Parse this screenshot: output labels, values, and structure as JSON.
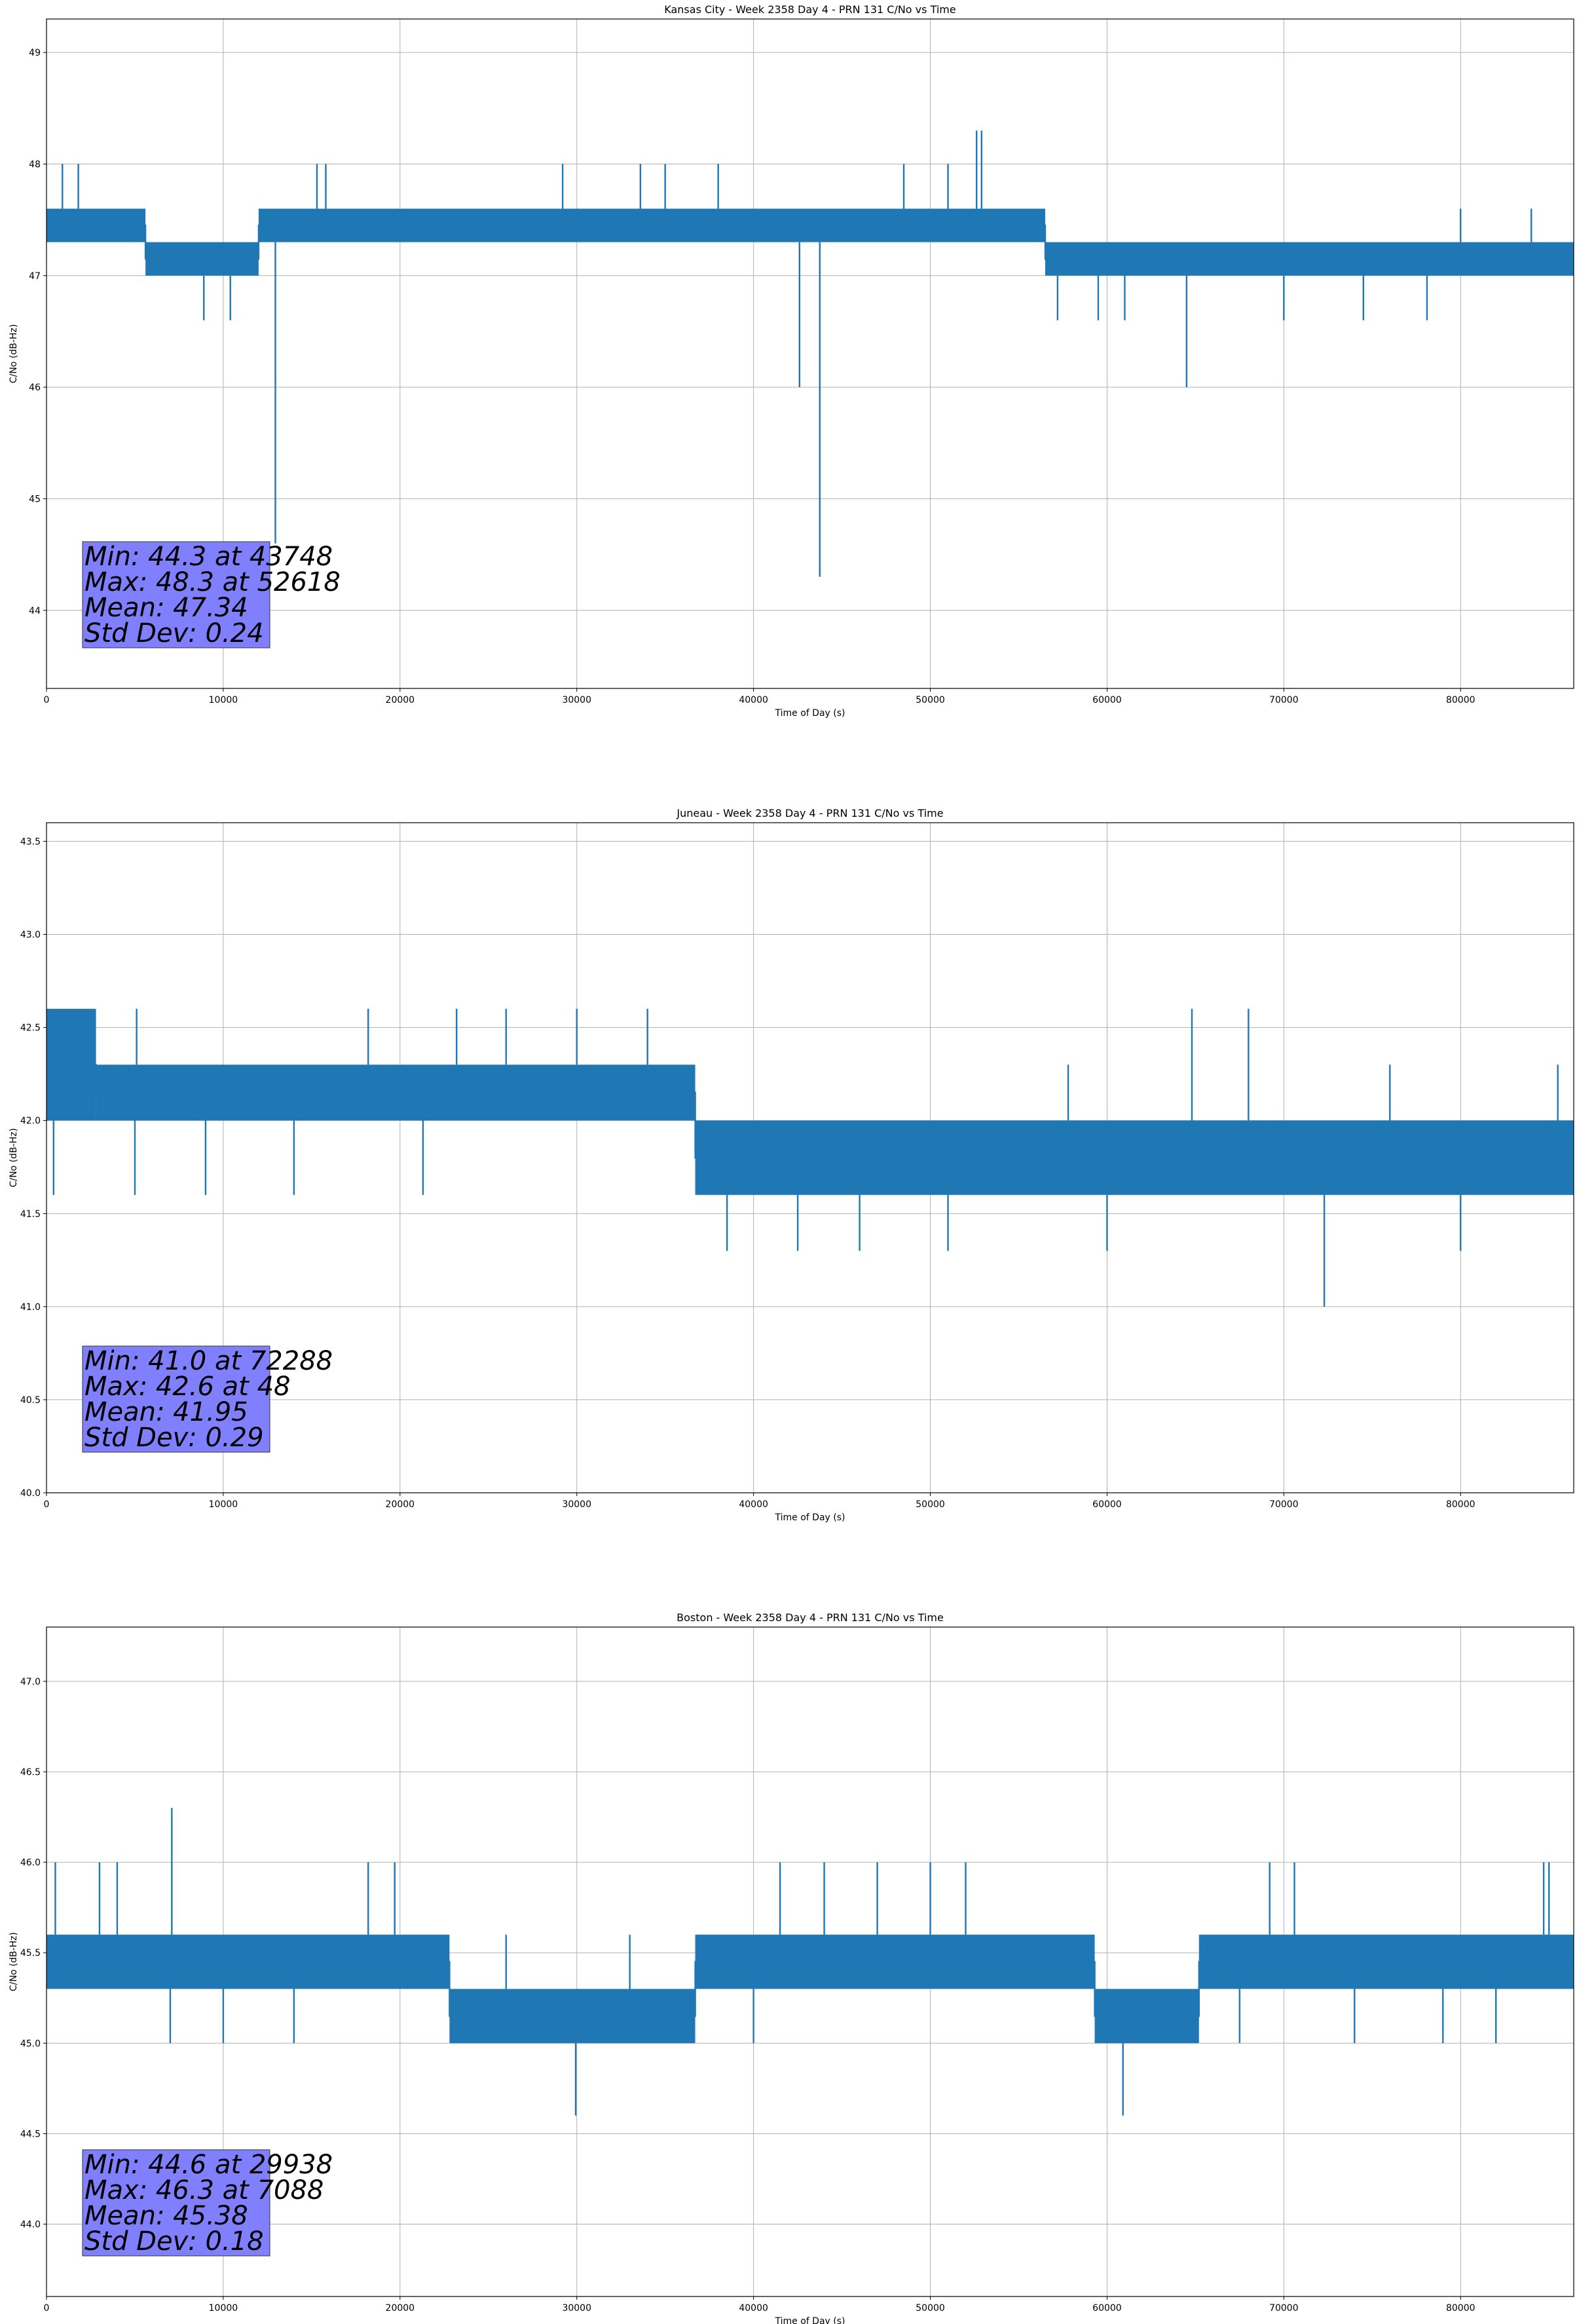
{
  "chart_data": [
    {
      "type": "line",
      "title": "Kansas City - Week 2358 Day 4 - PRN 131 C/No vs Time",
      "xlabel": "Time of Day (s)",
      "ylabel": "C/No (dB-Hz)",
      "xlim": [
        0,
        86400
      ],
      "ylim": [
        43.3,
        49.3
      ],
      "xticks": [
        0,
        10000,
        20000,
        30000,
        40000,
        50000,
        60000,
        70000,
        80000
      ],
      "xtick_labels": [
        "0",
        "10000",
        "20000",
        "30000",
        "40000",
        "50000",
        "60000",
        "70000",
        "80000"
      ],
      "yticks": [
        44,
        45,
        46,
        47,
        48,
        49
      ],
      "ytick_labels": [
        "44",
        "45",
        "46",
        "47",
        "48",
        "49"
      ],
      "grid": true,
      "series": [
        {
          "name": "C/No",
          "color": "#1f77b4",
          "bands": [
            {
              "x": [
                0,
                5600
              ],
              "low": 47.3,
              "high": 47.6
            },
            {
              "x": [
                5600,
                12000
              ],
              "low": 47.0,
              "high": 47.3
            },
            {
              "x": [
                12000,
                56500
              ],
              "low": 47.3,
              "high": 47.6
            },
            {
              "x": [
                56500,
                86400
              ],
              "low": 47.0,
              "high": 47.3
            }
          ],
          "points": [
            {
              "x": 0,
              "y": 47.45
            },
            {
              "x": 5600,
              "y": 47.45
            },
            {
              "x": 5600,
              "y": 47.15
            },
            {
              "x": 12000,
              "y": 47.15
            },
            {
              "x": 12000,
              "y": 47.45
            },
            {
              "x": 56500,
              "y": 47.45
            },
            {
              "x": 56500,
              "y": 47.15
            },
            {
              "x": 86400,
              "y": 47.15
            }
          ],
          "spikes": [
            {
              "x": 900,
              "y": 48.0
            },
            {
              "x": 1800,
              "y": 48.0
            },
            {
              "x": 8900,
              "y": 46.6
            },
            {
              "x": 10400,
              "y": 46.6
            },
            {
              "x": 12950,
              "y": 44.6
            },
            {
              "x": 15300,
              "y": 48.0
            },
            {
              "x": 15800,
              "y": 48.0
            },
            {
              "x": 29200,
              "y": 48.0
            },
            {
              "x": 33600,
              "y": 48.0
            },
            {
              "x": 35000,
              "y": 48.0
            },
            {
              "x": 38000,
              "y": 48.0
            },
            {
              "x": 42600,
              "y": 46.0
            },
            {
              "x": 43748,
              "y": 44.3
            },
            {
              "x": 48500,
              "y": 48.0
            },
            {
              "x": 51000,
              "y": 48.0
            },
            {
              "x": 52618,
              "y": 48.3
            },
            {
              "x": 52900,
              "y": 48.3
            },
            {
              "x": 57200,
              "y": 46.6
            },
            {
              "x": 59500,
              "y": 46.6
            },
            {
              "x": 61000,
              "y": 46.6
            },
            {
              "x": 64500,
              "y": 46.0
            },
            {
              "x": 70000,
              "y": 46.6
            },
            {
              "x": 74500,
              "y": 46.6
            },
            {
              "x": 78100,
              "y": 46.6
            },
            {
              "x": 80000,
              "y": 47.6
            },
            {
              "x": 84000,
              "y": 47.6
            }
          ]
        }
      ],
      "annotation": {
        "lines": [
          "Min: 44.3 at 43748",
          "Max: 48.3 at 52618",
          "Mean: 47.34",
          "Std Dev: 0.24"
        ],
        "placement": "lower-left",
        "facecolor": "#8080ff"
      }
    },
    {
      "type": "line",
      "title": "Juneau - Week 2358 Day 4 - PRN 131 C/No vs Time",
      "xlabel": "Time of Day (s)",
      "ylabel": "C/No (dB-Hz)",
      "xlim": [
        0,
        86400
      ],
      "ylim": [
        40.0,
        43.6
      ],
      "xticks": [
        0,
        10000,
        20000,
        30000,
        40000,
        50000,
        60000,
        70000,
        80000
      ],
      "xtick_labels": [
        "0",
        "10000",
        "20000",
        "30000",
        "40000",
        "50000",
        "60000",
        "70000",
        "80000"
      ],
      "yticks": [
        40.0,
        40.5,
        41.0,
        41.5,
        42.0,
        42.5,
        43.0,
        43.5
      ],
      "ytick_labels": [
        "40.0",
        "40.5",
        "41.0",
        "41.5",
        "42.0",
        "42.5",
        "43.0",
        "43.5"
      ],
      "grid": true,
      "series": [
        {
          "name": "C/No",
          "color": "#1f77b4",
          "bands": [
            {
              "x": [
                0,
                2800
              ],
              "low": 42.0,
              "high": 42.6
            },
            {
              "x": [
                2800,
                36700
              ],
              "low": 42.0,
              "high": 42.3
            },
            {
              "x": [
                36700,
                86400
              ],
              "low": 41.6,
              "high": 42.0
            }
          ],
          "points": [
            {
              "x": 0,
              "y": 42.3
            },
            {
              "x": 2800,
              "y": 42.3
            },
            {
              "x": 2800,
              "y": 42.15
            },
            {
              "x": 36700,
              "y": 42.15
            },
            {
              "x": 36700,
              "y": 41.8
            },
            {
              "x": 86400,
              "y": 41.8
            }
          ],
          "spikes": [
            {
              "x": 48,
              "y": 42.6
            },
            {
              "x": 400,
              "y": 41.6
            },
            {
              "x": 5100,
              "y": 42.6
            },
            {
              "x": 5000,
              "y": 41.6
            },
            {
              "x": 9000,
              "y": 41.6
            },
            {
              "x": 14000,
              "y": 41.6
            },
            {
              "x": 18200,
              "y": 42.6
            },
            {
              "x": 21300,
              "y": 41.6
            },
            {
              "x": 23200,
              "y": 42.6
            },
            {
              "x": 26000,
              "y": 42.6
            },
            {
              "x": 30000,
              "y": 42.6
            },
            {
              "x": 34000,
              "y": 42.6
            },
            {
              "x": 38500,
              "y": 41.3
            },
            {
              "x": 42500,
              "y": 41.3
            },
            {
              "x": 46000,
              "y": 41.3
            },
            {
              "x": 51000,
              "y": 41.3
            },
            {
              "x": 57800,
              "y": 42.3
            },
            {
              "x": 60000,
              "y": 41.3
            },
            {
              "x": 64800,
              "y": 42.6
            },
            {
              "x": 68000,
              "y": 42.6
            },
            {
              "x": 72288,
              "y": 41.0
            },
            {
              "x": 76000,
              "y": 42.3
            },
            {
              "x": 80000,
              "y": 41.3
            },
            {
              "x": 85500,
              "y": 42.3
            }
          ]
        }
      ],
      "annotation": {
        "lines": [
          "Min: 41.0 at 72288",
          "Max: 42.6 at 48",
          "Mean: 41.95",
          "Std Dev: 0.29"
        ],
        "placement": "lower-left",
        "facecolor": "#8080ff"
      }
    },
    {
      "type": "line",
      "title": "Boston - Week 2358 Day 4 - PRN 131 C/No vs Time",
      "xlabel": "Time of Day (s)",
      "ylabel": "C/No (dB-Hz)",
      "xlim": [
        0,
        86400
      ],
      "ylim": [
        43.6,
        47.3
      ],
      "xticks": [
        0,
        10000,
        20000,
        30000,
        40000,
        50000,
        60000,
        70000,
        80000
      ],
      "xtick_labels": [
        "0",
        "10000",
        "20000",
        "30000",
        "40000",
        "50000",
        "60000",
        "70000",
        "80000"
      ],
      "yticks": [
        44.0,
        44.5,
        45.0,
        45.5,
        46.0,
        46.5,
        47.0
      ],
      "ytick_labels": [
        "44.0",
        "44.5",
        "45.0",
        "45.5",
        "46.0",
        "46.5",
        "47.0"
      ],
      "grid": true,
      "series": [
        {
          "name": "C/No",
          "color": "#1f77b4",
          "bands": [
            {
              "x": [
                0,
                22800
              ],
              "low": 45.3,
              "high": 45.6
            },
            {
              "x": [
                22800,
                36700
              ],
              "low": 45.0,
              "high": 45.3
            },
            {
              "x": [
                36700,
                59300
              ],
              "low": 45.3,
              "high": 45.6
            },
            {
              "x": [
                59300,
                65200
              ],
              "low": 45.0,
              "high": 45.3
            },
            {
              "x": [
                65200,
                86400
              ],
              "low": 45.3,
              "high": 45.6
            }
          ],
          "points": [
            {
              "x": 0,
              "y": 45.45
            },
            {
              "x": 22800,
              "y": 45.45
            },
            {
              "x": 22800,
              "y": 45.15
            },
            {
              "x": 36700,
              "y": 45.15
            },
            {
              "x": 36700,
              "y": 45.45
            },
            {
              "x": 59300,
              "y": 45.45
            },
            {
              "x": 59300,
              "y": 45.15
            },
            {
              "x": 65200,
              "y": 45.15
            },
            {
              "x": 65200,
              "y": 45.45
            },
            {
              "x": 86400,
              "y": 45.45
            }
          ],
          "spikes": [
            {
              "x": 500,
              "y": 46.0
            },
            {
              "x": 3000,
              "y": 46.0
            },
            {
              "x": 4000,
              "y": 46.0
            },
            {
              "x": 7088,
              "y": 46.3
            },
            {
              "x": 7000,
              "y": 45.0
            },
            {
              "x": 10000,
              "y": 45.0
            },
            {
              "x": 14000,
              "y": 45.0
            },
            {
              "x": 18200,
              "y": 46.0
            },
            {
              "x": 19700,
              "y": 46.0
            },
            {
              "x": 26000,
              "y": 45.6
            },
            {
              "x": 29938,
              "y": 44.6
            },
            {
              "x": 33000,
              "y": 45.6
            },
            {
              "x": 40000,
              "y": 45.0
            },
            {
              "x": 41500,
              "y": 46.0
            },
            {
              "x": 44000,
              "y": 46.0
            },
            {
              "x": 47000,
              "y": 46.0
            },
            {
              "x": 50000,
              "y": 46.0
            },
            {
              "x": 52000,
              "y": 46.0
            },
            {
              "x": 60900,
              "y": 44.6
            },
            {
              "x": 67500,
              "y": 45.0
            },
            {
              "x": 69200,
              "y": 46.0
            },
            {
              "x": 70600,
              "y": 46.0
            },
            {
              "x": 74000,
              "y": 45.0
            },
            {
              "x": 79000,
              "y": 45.0
            },
            {
              "x": 82000,
              "y": 45.0
            },
            {
              "x": 84700,
              "y": 46.0
            },
            {
              "x": 85000,
              "y": 46.0
            }
          ]
        }
      ],
      "annotation": {
        "lines": [
          "Min: 44.6 at 29938",
          "Max: 46.3 at 7088",
          "Mean: 45.38",
          "Std Dev: 0.18"
        ],
        "placement": "lower-left",
        "facecolor": "#8080ff"
      }
    }
  ]
}
